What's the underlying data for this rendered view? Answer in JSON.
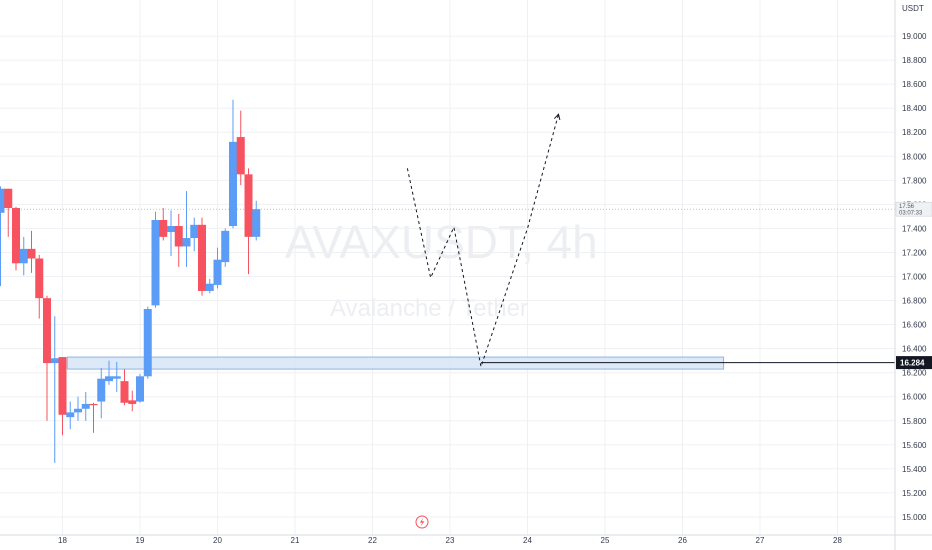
{
  "chart_data": {
    "type": "candlestick",
    "symbol": "AVAXUSDT",
    "interval": "4h",
    "subtitle": "Avalanche / Tether",
    "currency": "USDT",
    "y_range": [
      14.85,
      19.3
    ],
    "y_ticks": [
      "15.000",
      "15.200",
      "15.400",
      "15.600",
      "15.800",
      "16.000",
      "16.200",
      "16.400",
      "16.600",
      "16.800",
      "17.000",
      "17.200",
      "17.400",
      "17.600",
      "17.800",
      "18.000",
      "18.200",
      "18.400",
      "18.600",
      "18.800",
      "19.000"
    ],
    "x_ticks": [
      {
        "label": "18",
        "slot": 8
      },
      {
        "label": "19",
        "slot": 18
      },
      {
        "label": "20",
        "slot": 28
      },
      {
        "label": "21",
        "slot": 38
      },
      {
        "label": "22",
        "slot": 48
      },
      {
        "label": "23",
        "slot": 58
      },
      {
        "label": "24",
        "slot": 68
      },
      {
        "label": "25",
        "slot": 78
      },
      {
        "label": "26",
        "slot": 88
      },
      {
        "label": "27",
        "slot": 98
      },
      {
        "label": "28",
        "slot": 108
      }
    ],
    "candles": [
      {
        "o": 17.53,
        "h": 17.75,
        "l": 16.92,
        "c": 17.73
      },
      {
        "o": 17.73,
        "h": 17.73,
        "l": 17.33,
        "c": 17.57
      },
      {
        "o": 17.57,
        "h": 17.58,
        "l": 17.05,
        "c": 17.11
      },
      {
        "o": 17.11,
        "h": 17.33,
        "l": 17.01,
        "c": 17.23
      },
      {
        "o": 17.23,
        "h": 17.38,
        "l": 17.03,
        "c": 17.15
      },
      {
        "o": 17.15,
        "h": 17.18,
        "l": 16.65,
        "c": 16.82
      },
      {
        "o": 16.82,
        "h": 16.84,
        "l": 15.8,
        "c": 16.28
      },
      {
        "o": 16.28,
        "h": 16.67,
        "l": 15.45,
        "c": 16.32
      },
      {
        "o": 16.33,
        "h": 16.33,
        "l": 15.68,
        "c": 15.85
      },
      {
        "o": 15.83,
        "h": 15.96,
        "l": 15.73,
        "c": 15.87
      },
      {
        "o": 15.87,
        "h": 16.0,
        "l": 15.8,
        "c": 15.9
      },
      {
        "o": 15.9,
        "h": 16.04,
        "l": 15.8,
        "c": 15.94
      },
      {
        "o": 15.94,
        "h": 15.95,
        "l": 15.7,
        "c": 15.93
      },
      {
        "o": 15.96,
        "h": 16.24,
        "l": 15.82,
        "c": 16.15
      },
      {
        "o": 16.13,
        "h": 16.3,
        "l": 16.1,
        "c": 16.17
      },
      {
        "o": 16.15,
        "h": 16.29,
        "l": 16.04,
        "c": 16.17
      },
      {
        "o": 16.13,
        "h": 16.23,
        "l": 15.93,
        "c": 15.95
      },
      {
        "o": 15.97,
        "h": 16.05,
        "l": 15.88,
        "c": 15.94
      },
      {
        "o": 15.96,
        "h": 16.19,
        "l": 15.95,
        "c": 16.17
      },
      {
        "o": 16.17,
        "h": 16.75,
        "l": 16.15,
        "c": 16.73
      },
      {
        "o": 16.76,
        "h": 17.54,
        "l": 16.74,
        "c": 17.47
      },
      {
        "o": 17.47,
        "h": 17.57,
        "l": 17.3,
        "c": 17.33
      },
      {
        "o": 17.37,
        "h": 17.55,
        "l": 17.17,
        "c": 17.42
      },
      {
        "o": 17.42,
        "h": 17.52,
        "l": 17.08,
        "c": 17.25
      },
      {
        "o": 17.25,
        "h": 17.71,
        "l": 17.08,
        "c": 17.32
      },
      {
        "o": 17.32,
        "h": 17.49,
        "l": 17.21,
        "c": 17.43
      },
      {
        "o": 17.43,
        "h": 17.49,
        "l": 16.84,
        "c": 16.88
      },
      {
        "o": 16.88,
        "h": 16.98,
        "l": 16.86,
        "c": 16.94
      },
      {
        "o": 16.93,
        "h": 17.24,
        "l": 16.9,
        "c": 17.14
      },
      {
        "o": 17.12,
        "h": 17.4,
        "l": 17.08,
        "c": 17.38
      },
      {
        "o": 17.42,
        "h": 18.47,
        "l": 17.4,
        "c": 18.12
      },
      {
        "o": 18.16,
        "h": 18.38,
        "l": 17.76,
        "c": 17.85
      },
      {
        "o": 17.85,
        "h": 17.9,
        "l": 17.02,
        "c": 17.33
      },
      {
        "o": 17.33,
        "h": 17.63,
        "l": 17.3,
        "c": 17.56
      }
    ],
    "last_price": "17.56",
    "countdown": "03:07:33",
    "support_level": "16.284",
    "support_zone": {
      "low": 16.23,
      "high": 16.33,
      "from_slot": 9,
      "to_slot": 93.3
    },
    "projection_path": [
      [
        52.5,
        17.9
      ],
      [
        55.5,
        16.99
      ],
      [
        58.5,
        17.41
      ],
      [
        62.0,
        16.25
      ],
      [
        68.0,
        17.4
      ],
      [
        72.0,
        18.35
      ]
    ],
    "colors": {
      "up": "#5b9cf6",
      "down": "#f7525f",
      "zone_fill": "#dbe8f8",
      "zone_border": "#8fb0dd",
      "line": "#131722",
      "grid": "#eef0f4",
      "axis": "#d8dbe2"
    }
  },
  "footer": {
    "lightning_icon": "lightning-icon"
  }
}
